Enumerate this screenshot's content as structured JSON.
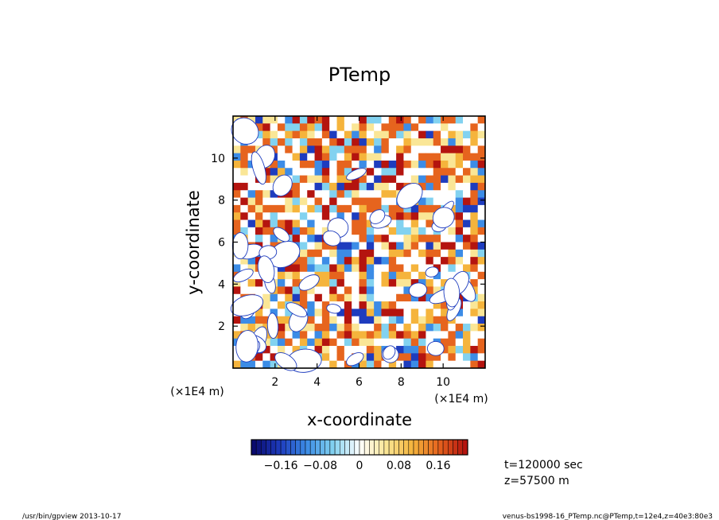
{
  "chart_data": {
    "type": "heatmap",
    "title": "PTemp",
    "xlabel": "x-coordinate",
    "ylabel": "y-coordinate",
    "x_unit_label": "(×1E4 m)",
    "y_unit_label": "(×1E4 m)",
    "xlim": [
      0,
      12
    ],
    "ylim": [
      0,
      12
    ],
    "x_ticks": [
      2,
      4,
      6,
      8,
      10
    ],
    "y_ticks": [
      2,
      4,
      6,
      8,
      10
    ],
    "x_tick_labels": [
      "2",
      "4",
      "6",
      "8",
      "10"
    ],
    "y_tick_labels": [
      "2",
      "4",
      "6",
      "8",
      "10"
    ],
    "colorbar": {
      "min": -0.22,
      "max": 0.22,
      "tick_values": [
        -0.16,
        -0.08,
        0,
        0.08,
        0.16
      ],
      "tick_labels": [
        "−0.16",
        "−0.08",
        "0",
        "0.08",
        "0.16"
      ],
      "colors": [
        "#0a0a6e",
        "#1e3cbe",
        "#3c8ce6",
        "#82d2f0",
        "#ffffff",
        "#fae696",
        "#f5b43c",
        "#e6641e",
        "#b4140f"
      ]
    },
    "annotations": [
      "t=120000 sec",
      "z=57500 m"
    ],
    "grid": false
  },
  "footer": {
    "left": "/usr/bin/gpview  2013-10-17",
    "right": "venus-bs1998-16_PTemp.nc@PTemp,t=12e4,z=40e3:80e3"
  }
}
